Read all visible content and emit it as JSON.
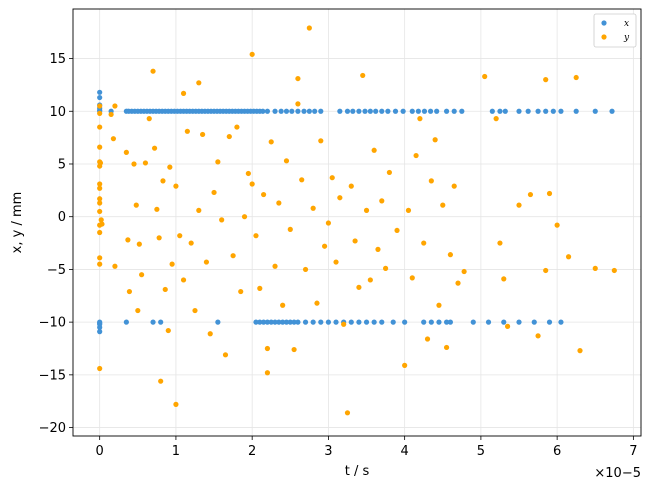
{
  "chart_data": {
    "type": "scatter",
    "title": "",
    "xlabel": "t / s",
    "ylabel": "x, y / mm",
    "x_multiplier_label": "×10−5",
    "xlim": [
      -3.5e-06,
      7.1e-05
    ],
    "ylim": [
      -20.8,
      19.7
    ],
    "xticks": [
      0,
      1e-05,
      2e-05,
      3e-05,
      4e-05,
      5e-05,
      6e-05,
      7e-05
    ],
    "xtick_labels": [
      "0",
      "1",
      "2",
      "3",
      "4",
      "5",
      "6",
      "7"
    ],
    "yticks": [
      -20,
      -15,
      -10,
      -5,
      0,
      5,
      10,
      15
    ],
    "ytick_labels": [
      "−20",
      "−15",
      "−10",
      "−5",
      "0",
      "5",
      "10",
      "15"
    ],
    "grid": true,
    "legend_position": "top-right",
    "series": [
      {
        "name": "x",
        "color": "#4292d6",
        "points": [
          [
            0,
            11.8
          ],
          [
            0,
            11.3
          ],
          [
            0,
            10.6
          ],
          [
            0,
            10.3
          ],
          [
            0,
            10.1
          ],
          [
            0,
            10.0
          ],
          [
            0,
            -10.0
          ],
          [
            0,
            -10.2
          ],
          [
            0,
            -10.5
          ],
          [
            0,
            -10.9
          ],
          [
            0,
            -10.1
          ],
          [
            3.5e-06,
            -10.0
          ],
          [
            8e-06,
            -10.0
          ],
          [
            7e-06,
            -10.0
          ],
          [
            1.5e-06,
            10.0
          ],
          [
            3.5e-06,
            10.0
          ],
          [
            3.8e-06,
            10.0
          ],
          [
            4.2e-06,
            10.0
          ],
          [
            4.6e-06,
            10.0
          ],
          [
            5e-06,
            10.0
          ],
          [
            5.4e-06,
            10.0
          ],
          [
            5.8e-06,
            10.0
          ],
          [
            6.2e-06,
            10.0
          ],
          [
            6.6e-06,
            10.0
          ],
          [
            7e-06,
            10.0
          ],
          [
            7.4e-06,
            10.0
          ],
          [
            7.8e-06,
            10.0
          ],
          [
            8.2e-06,
            10.0
          ],
          [
            8.6e-06,
            10.0
          ],
          [
            9e-06,
            10.0
          ],
          [
            9.4e-06,
            10.0
          ],
          [
            9.8e-06,
            10.0
          ],
          [
            1.02e-05,
            10.0
          ],
          [
            1.06e-05,
            10.0
          ],
          [
            1.1e-05,
            10.0
          ],
          [
            1.14e-05,
            10.0
          ],
          [
            1.18e-05,
            10.0
          ],
          [
            1.22e-05,
            10.0
          ],
          [
            1.26e-05,
            10.0
          ],
          [
            1.3e-05,
            10.0
          ],
          [
            1.34e-05,
            10.0
          ],
          [
            1.38e-05,
            10.0
          ],
          [
            1.42e-05,
            10.0
          ],
          [
            1.46e-05,
            10.0
          ],
          [
            1.5e-05,
            10.0
          ],
          [
            1.54e-05,
            10.0
          ],
          [
            1.58e-05,
            10.0
          ],
          [
            1.62e-05,
            10.0
          ],
          [
            1.66e-05,
            10.0
          ],
          [
            1.7e-05,
            10.0
          ],
          [
            1.74e-05,
            10.0
          ],
          [
            1.78e-05,
            10.0
          ],
          [
            1.82e-05,
            10.0
          ],
          [
            1.86e-05,
            10.0
          ],
          [
            1.9e-05,
            10.0
          ],
          [
            1.94e-05,
            10.0
          ],
          [
            1.98e-05,
            10.0
          ],
          [
            2.02e-05,
            10.0
          ],
          [
            2.06e-05,
            10.0
          ],
          [
            2.1e-05,
            10.0
          ],
          [
            2.14e-05,
            10.0
          ],
          [
            2.2e-05,
            10.0
          ],
          [
            2.3e-05,
            10.0
          ],
          [
            2.38e-05,
            10.0
          ],
          [
            2.45e-05,
            10.0
          ],
          [
            2.52e-05,
            10.0
          ],
          [
            2.6e-05,
            10.0
          ],
          [
            2.68e-05,
            10.0
          ],
          [
            2.75e-05,
            10.0
          ],
          [
            2.82e-05,
            10.0
          ],
          [
            2.9e-05,
            10.0
          ],
          [
            3.15e-05,
            10.0
          ],
          [
            3.25e-05,
            10.0
          ],
          [
            3.32e-05,
            10.0
          ],
          [
            3.4e-05,
            10.0
          ],
          [
            3.48e-05,
            10.0
          ],
          [
            3.55e-05,
            10.0
          ],
          [
            3.62e-05,
            10.0
          ],
          [
            3.7e-05,
            10.0
          ],
          [
            3.78e-05,
            10.0
          ],
          [
            3.88e-05,
            10.0
          ],
          [
            3.98e-05,
            10.0
          ],
          [
            4.1e-05,
            10.0
          ],
          [
            4.18e-05,
            10.0
          ],
          [
            4.26e-05,
            10.0
          ],
          [
            4.34e-05,
            10.0
          ],
          [
            4.42e-05,
            10.0
          ],
          [
            4.55e-05,
            10.0
          ],
          [
            4.65e-05,
            10.0
          ],
          [
            4.75e-05,
            10.0
          ],
          [
            5.15e-05,
            10.0
          ],
          [
            5.25e-05,
            10.0
          ],
          [
            5.32e-05,
            10.0
          ],
          [
            5.5e-05,
            10.0
          ],
          [
            5.62e-05,
            10.0
          ],
          [
            5.75e-05,
            10.0
          ],
          [
            5.85e-05,
            10.0
          ],
          [
            5.95e-05,
            10.0
          ],
          [
            6.05e-05,
            10.0
          ],
          [
            6.25e-05,
            10.0
          ],
          [
            6.5e-05,
            10.0
          ],
          [
            6.72e-05,
            10.0
          ],
          [
            1.55e-05,
            -10.0
          ],
          [
            2.05e-05,
            -10.0
          ],
          [
            2.1e-05,
            -10.0
          ],
          [
            2.15e-05,
            -10.0
          ],
          [
            2.2e-05,
            -10.0
          ],
          [
            2.25e-05,
            -10.0
          ],
          [
            2.3e-05,
            -10.0
          ],
          [
            2.35e-05,
            -10.0
          ],
          [
            2.4e-05,
            -10.0
          ],
          [
            2.45e-05,
            -10.0
          ],
          [
            2.5e-05,
            -10.0
          ],
          [
            2.55e-05,
            -10.0
          ],
          [
            2.6e-05,
            -10.0
          ],
          [
            2.7e-05,
            -10.0
          ],
          [
            2.8e-05,
            -10.0
          ],
          [
            2.9e-05,
            -10.0
          ],
          [
            3e-05,
            -10.0
          ],
          [
            3.1e-05,
            -10.0
          ],
          [
            3.2e-05,
            -10.0
          ],
          [
            3.3e-05,
            -10.0
          ],
          [
            3.4e-05,
            -10.0
          ],
          [
            3.5e-05,
            -10.0
          ],
          [
            3.6e-05,
            -10.0
          ],
          [
            3.7e-05,
            -10.0
          ],
          [
            3.85e-05,
            -10.0
          ],
          [
            4e-05,
            -10.0
          ],
          [
            4.25e-05,
            -10.0
          ],
          [
            4.35e-05,
            -10.0
          ],
          [
            4.45e-05,
            -10.0
          ],
          [
            4.55e-05,
            -10.0
          ],
          [
            4.6e-05,
            -10.0
          ],
          [
            4.9e-05,
            -10.0
          ],
          [
            5.1e-05,
            -10.0
          ],
          [
            5.3e-05,
            -10.0
          ],
          [
            5.5e-05,
            -10.0
          ],
          [
            5.7e-05,
            -10.0
          ],
          [
            5.9e-05,
            -10.0
          ],
          [
            6.05e-05,
            -10.0
          ]
        ]
      },
      {
        "name": "y",
        "color": "#ffa500",
        "points": [
          [
            0,
            10.5
          ],
          [
            0,
            9.8
          ],
          [
            0,
            8.5
          ],
          [
            0,
            6.6
          ],
          [
            0,
            5.2
          ],
          [
            0,
            4.8
          ],
          [
            0,
            3.1
          ],
          [
            0,
            2.7
          ],
          [
            0,
            1.7
          ],
          [
            0,
            1.3
          ],
          [
            0,
            0.5
          ],
          [
            0,
            -0.8
          ],
          [
            0,
            -1.5
          ],
          [
            0,
            -3.9
          ],
          [
            0,
            -4.5
          ],
          [
            0,
            -14.4
          ],
          [
            1e-07,
            5.1
          ],
          [
            2e-07,
            -0.3
          ],
          [
            3e-07,
            -0.7
          ],
          [
            2e-06,
            10.5
          ],
          [
            1.5e-06,
            9.7
          ],
          [
            1.8e-06,
            7.4
          ],
          [
            2e-06,
            -4.7
          ],
          [
            3.5e-06,
            6.1
          ],
          [
            3.7e-06,
            -2.2
          ],
          [
            3.9e-06,
            -7.1
          ],
          [
            4.5e-06,
            5.0
          ],
          [
            4.8e-06,
            1.1
          ],
          [
            5e-06,
            -8.9
          ],
          [
            5.2e-06,
            -2.6
          ],
          [
            5.5e-06,
            -5.5
          ],
          [
            6e-06,
            5.1
          ],
          [
            6.5e-06,
            9.3
          ],
          [
            7e-06,
            13.8
          ],
          [
            7.2e-06,
            6.5
          ],
          [
            7.5e-06,
            0.7
          ],
          [
            7.8e-06,
            -2.0
          ],
          [
            8e-06,
            -15.6
          ],
          [
            8.3e-06,
            3.4
          ],
          [
            8.6e-06,
            -6.9
          ],
          [
            9e-06,
            -10.8
          ],
          [
            9.2e-06,
            4.7
          ],
          [
            9.5e-06,
            -4.5
          ],
          [
            1e-05,
            -17.8
          ],
          [
            1e-05,
            2.9
          ],
          [
            1.05e-05,
            -1.8
          ],
          [
            1.1e-05,
            11.7
          ],
          [
            1.1e-05,
            -6.0
          ],
          [
            1.15e-05,
            8.1
          ],
          [
            1.2e-05,
            -2.5
          ],
          [
            1.25e-05,
            -8.9
          ],
          [
            1.3e-05,
            12.7
          ],
          [
            1.3e-05,
            0.6
          ],
          [
            1.35e-05,
            7.8
          ],
          [
            1.4e-05,
            -4.3
          ],
          [
            1.45e-05,
            -11.1
          ],
          [
            1.5e-05,
            2.3
          ],
          [
            1.55e-05,
            5.2
          ],
          [
            1.6e-05,
            -0.3
          ],
          [
            1.65e-05,
            -13.1
          ],
          [
            1.7e-05,
            7.6
          ],
          [
            1.75e-05,
            -3.7
          ],
          [
            1.8e-05,
            8.5
          ],
          [
            1.85e-05,
            -7.1
          ],
          [
            1.9e-05,
            0.0
          ],
          [
            1.95e-05,
            4.1
          ],
          [
            2e-05,
            3.1
          ],
          [
            2e-05,
            15.4
          ],
          [
            2.05e-05,
            -1.8
          ],
          [
            2.1e-05,
            -6.8
          ],
          [
            2.15e-05,
            2.1
          ],
          [
            2.2e-05,
            -12.5
          ],
          [
            2.2e-05,
            -14.8
          ],
          [
            2.25e-05,
            7.1
          ],
          [
            2.3e-05,
            -4.7
          ],
          [
            2.35e-05,
            1.3
          ],
          [
            2.4e-05,
            -8.4
          ],
          [
            2.45e-05,
            5.3
          ],
          [
            2.5e-05,
            -1.2
          ],
          [
            2.55e-05,
            -12.6
          ],
          [
            2.6e-05,
            13.1
          ],
          [
            2.6e-05,
            10.7
          ],
          [
            2.65e-05,
            3.5
          ],
          [
            2.7e-05,
            -5.0
          ],
          [
            2.75e-05,
            17.9
          ],
          [
            2.8e-05,
            0.8
          ],
          [
            2.85e-05,
            -8.2
          ],
          [
            2.9e-05,
            7.2
          ],
          [
            2.95e-05,
            -2.8
          ],
          [
            3e-05,
            -0.6
          ],
          [
            3.05e-05,
            3.7
          ],
          [
            3.1e-05,
            -4.3
          ],
          [
            3.15e-05,
            1.8
          ],
          [
            3.2e-05,
            -10.2
          ],
          [
            3.25e-05,
            -18.6
          ],
          [
            3.3e-05,
            2.9
          ],
          [
            3.35e-05,
            -2.3
          ],
          [
            3.4e-05,
            -6.7
          ],
          [
            3.45e-05,
            13.4
          ],
          [
            3.5e-05,
            0.6
          ],
          [
            3.55e-05,
            -6.0
          ],
          [
            3.6e-05,
            6.3
          ],
          [
            3.65e-05,
            -3.1
          ],
          [
            3.7e-05,
            1.5
          ],
          [
            3.75e-05,
            -4.9
          ],
          [
            3.8e-05,
            4.2
          ],
          [
            3.9e-05,
            -1.3
          ],
          [
            4e-05,
            -14.1
          ],
          [
            4.05e-05,
            0.6
          ],
          [
            4.1e-05,
            -5.8
          ],
          [
            4.15e-05,
            5.8
          ],
          [
            4.2e-05,
            9.3
          ],
          [
            4.25e-05,
            -2.5
          ],
          [
            4.3e-05,
            -11.6
          ],
          [
            4.35e-05,
            3.4
          ],
          [
            4.4e-05,
            7.3
          ],
          [
            4.45e-05,
            -8.4
          ],
          [
            4.5e-05,
            1.1
          ],
          [
            4.55e-05,
            -12.4
          ],
          [
            4.6e-05,
            -3.6
          ],
          [
            4.65e-05,
            2.9
          ],
          [
            4.7e-05,
            -6.3
          ],
          [
            4.78e-05,
            -5.2
          ],
          [
            5.05e-05,
            13.3
          ],
          [
            5.2e-05,
            9.3
          ],
          [
            5.25e-05,
            -2.5
          ],
          [
            5.3e-05,
            -5.9
          ],
          [
            5.35e-05,
            -10.4
          ],
          [
            5.5e-05,
            1.1
          ],
          [
            5.65e-05,
            2.1
          ],
          [
            5.75e-05,
            -11.3
          ],
          [
            5.85e-05,
            13.0
          ],
          [
            5.85e-05,
            -5.1
          ],
          [
            5.9e-05,
            2.2
          ],
          [
            6e-05,
            -0.8
          ],
          [
            6.15e-05,
            -3.8
          ],
          [
            6.25e-05,
            13.2
          ],
          [
            6.3e-05,
            -12.7
          ],
          [
            6.5e-05,
            -4.9
          ],
          [
            6.75e-05,
            -5.1
          ]
        ]
      }
    ]
  }
}
